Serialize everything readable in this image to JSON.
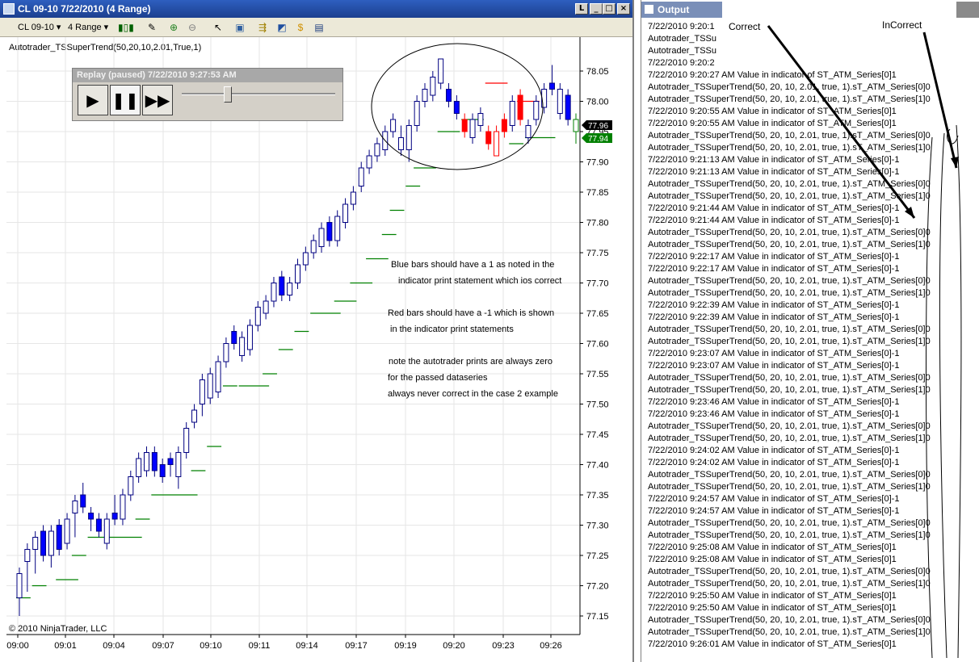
{
  "chart_window": {
    "title": "CL 09-10  7/22/2010 (4 Range)",
    "instrument_selector": "CL 09-10",
    "period_selector": "4 Range",
    "indicator_label": "Autotrader_TSSuperTrend(50,20,10,2.01,True,1)",
    "copyright": "© 2010 NinjaTrader, LLC"
  },
  "replay": {
    "title": "Replay (paused) 7/22/2010 9:27:53 AM",
    "slider_position": 0.3
  },
  "price_markers": {
    "last_price": "77.96",
    "stop_price": "77.94"
  },
  "annotation": {
    "line1": "Blue bars should have a 1 as noted in the",
    "line2": "indicator print statement which ios correct",
    "line3": "Red bars should have a  -1 which is shown",
    "line4": "in the indicator print statements",
    "line5": "note the autotrader prints are always zero",
    "line6": "for the passed dataseries",
    "line7": "always never correct in the case 2 example"
  },
  "chart_data": {
    "type": "candlestick",
    "x_ticks": [
      "09:00",
      "09:01",
      "09:04",
      "09:07",
      "09:10",
      "09:11",
      "09:14",
      "09:17",
      "09:19",
      "09:20",
      "09:23",
      "09:26"
    ],
    "y_ticks": [
      "78.05",
      "78.00",
      "77.95",
      "77.90",
      "77.85",
      "77.80",
      "77.75",
      "77.70",
      "77.65",
      "77.60",
      "77.55",
      "77.50",
      "77.45",
      "77.40",
      "77.35",
      "77.30",
      "77.25",
      "77.20",
      "77.15"
    ],
    "ylim": [
      77.14,
      78.09
    ],
    "grid": true,
    "colors": {
      "up": "#ffffff",
      "down_blue": "#0000ff",
      "down_red": "#ff0000",
      "stop": "#008000",
      "outline": "#000080",
      "red_outline": "#ff0000"
    },
    "bars": [
      {
        "o": 77.18,
        "c": 77.22,
        "h": 77.23,
        "l": 77.15,
        "col": "up"
      },
      {
        "o": 77.24,
        "c": 77.26,
        "h": 77.27,
        "l": 77.19,
        "col": "up"
      },
      {
        "o": 77.26,
        "c": 77.28,
        "h": 77.29,
        "l": 77.22,
        "col": "up"
      },
      {
        "o": 77.29,
        "c": 77.25,
        "h": 77.3,
        "l": 77.24,
        "col": "blue"
      },
      {
        "o": 77.25,
        "c": 77.29,
        "h": 77.3,
        "l": 77.23,
        "col": "up"
      },
      {
        "o": 77.3,
        "c": 77.26,
        "h": 77.31,
        "l": 77.25,
        "col": "blue"
      },
      {
        "o": 77.27,
        "c": 77.31,
        "h": 77.32,
        "l": 77.26,
        "col": "up"
      },
      {
        "o": 77.32,
        "c": 77.34,
        "h": 77.35,
        "l": 77.28,
        "col": "up"
      },
      {
        "o": 77.35,
        "c": 77.33,
        "h": 77.37,
        "l": 77.32,
        "col": "blue"
      },
      {
        "o": 77.32,
        "c": 77.31,
        "h": 77.33,
        "l": 77.29,
        "col": "blue"
      },
      {
        "o": 77.31,
        "c": 77.29,
        "h": 77.32,
        "l": 77.28,
        "col": "blue"
      },
      {
        "o": 77.27,
        "c": 77.31,
        "h": 77.32,
        "l": 77.26,
        "col": "up"
      },
      {
        "o": 77.31,
        "c": 77.32,
        "h": 77.35,
        "l": 77.3,
        "col": "blue"
      },
      {
        "o": 77.31,
        "c": 77.35,
        "h": 77.36,
        "l": 77.3,
        "col": "up"
      },
      {
        "o": 77.35,
        "c": 77.38,
        "h": 77.39,
        "l": 77.34,
        "col": "up"
      },
      {
        "o": 77.38,
        "c": 77.41,
        "h": 77.42,
        "l": 77.37,
        "col": "up"
      },
      {
        "o": 77.39,
        "c": 77.42,
        "h": 77.43,
        "l": 77.38,
        "col": "up"
      },
      {
        "o": 77.42,
        "c": 77.39,
        "h": 77.43,
        "l": 77.38,
        "col": "blue"
      },
      {
        "o": 77.38,
        "c": 77.4,
        "h": 77.41,
        "l": 77.37,
        "col": "blue"
      },
      {
        "o": 77.4,
        "c": 77.41,
        "h": 77.42,
        "l": 77.38,
        "col": "blue"
      },
      {
        "o": 77.38,
        "c": 77.42,
        "h": 77.43,
        "l": 77.36,
        "col": "up"
      },
      {
        "o": 77.42,
        "c": 77.46,
        "h": 77.47,
        "l": 77.41,
        "col": "up"
      },
      {
        "o": 77.47,
        "c": 77.49,
        "h": 77.5,
        "l": 77.46,
        "col": "up"
      },
      {
        "o": 77.5,
        "c": 77.54,
        "h": 77.55,
        "l": 77.48,
        "col": "up"
      },
      {
        "o": 77.51,
        "c": 77.55,
        "h": 77.56,
        "l": 77.5,
        "col": "up"
      },
      {
        "o": 77.52,
        "c": 77.57,
        "h": 77.58,
        "l": 77.51,
        "col": "up"
      },
      {
        "o": 77.57,
        "c": 77.6,
        "h": 77.61,
        "l": 77.56,
        "col": "up"
      },
      {
        "o": 77.6,
        "c": 77.62,
        "h": 77.63,
        "l": 77.59,
        "col": "blue"
      },
      {
        "o": 77.58,
        "c": 77.61,
        "h": 77.62,
        "l": 77.57,
        "col": "up"
      },
      {
        "o": 77.59,
        "c": 77.63,
        "h": 77.64,
        "l": 77.58,
        "col": "up"
      },
      {
        "o": 77.63,
        "c": 77.66,
        "h": 77.67,
        "l": 77.62,
        "col": "up"
      },
      {
        "o": 77.65,
        "c": 77.67,
        "h": 77.68,
        "l": 77.64,
        "col": "up"
      },
      {
        "o": 77.67,
        "c": 77.7,
        "h": 77.71,
        "l": 77.66,
        "col": "up"
      },
      {
        "o": 77.71,
        "c": 77.68,
        "h": 77.72,
        "l": 77.67,
        "col": "blue"
      },
      {
        "o": 77.68,
        "c": 77.7,
        "h": 77.71,
        "l": 77.67,
        "col": "up"
      },
      {
        "o": 77.7,
        "c": 77.73,
        "h": 77.74,
        "l": 77.69,
        "col": "up"
      },
      {
        "o": 77.73,
        "c": 77.75,
        "h": 77.76,
        "l": 77.72,
        "col": "up"
      },
      {
        "o": 77.75,
        "c": 77.77,
        "h": 77.78,
        "l": 77.74,
        "col": "up"
      },
      {
        "o": 77.76,
        "c": 77.79,
        "h": 77.8,
        "l": 77.75,
        "col": "up"
      },
      {
        "o": 77.8,
        "c": 77.77,
        "h": 77.81,
        "l": 77.76,
        "col": "blue"
      },
      {
        "o": 77.77,
        "c": 77.81,
        "h": 77.82,
        "l": 77.76,
        "col": "up"
      },
      {
        "o": 77.8,
        "c": 77.83,
        "h": 77.84,
        "l": 77.79,
        "col": "up"
      },
      {
        "o": 77.83,
        "c": 77.85,
        "h": 77.86,
        "l": 77.82,
        "col": "up"
      },
      {
        "o": 77.86,
        "c": 77.89,
        "h": 77.9,
        "l": 77.85,
        "col": "up"
      },
      {
        "o": 77.89,
        "c": 77.91,
        "h": 77.92,
        "l": 77.88,
        "col": "up"
      },
      {
        "o": 77.91,
        "c": 77.93,
        "h": 77.94,
        "l": 77.9,
        "col": "up"
      },
      {
        "o": 77.92,
        "c": 77.95,
        "h": 77.96,
        "l": 77.91,
        "col": "up"
      },
      {
        "o": 77.95,
        "c": 77.97,
        "h": 77.98,
        "l": 77.94,
        "col": "up"
      },
      {
        "o": 77.94,
        "c": 77.92,
        "h": 77.96,
        "l": 77.91,
        "col": "up"
      },
      {
        "o": 77.92,
        "c": 77.96,
        "h": 77.97,
        "l": 77.9,
        "col": "up"
      },
      {
        "o": 77.96,
        "c": 78.0,
        "h": 78.01,
        "l": 77.95,
        "col": "up"
      },
      {
        "o": 78.0,
        "c": 78.02,
        "h": 78.03,
        "l": 77.99,
        "col": "up"
      },
      {
        "o": 78.01,
        "c": 78.04,
        "h": 78.05,
        "l": 78.0,
        "col": "up"
      },
      {
        "o": 78.03,
        "c": 78.07,
        "h": 78.07,
        "l": 78.02,
        "col": "up"
      },
      {
        "o": 78.02,
        "c": 78.0,
        "h": 78.03,
        "l": 77.99,
        "col": "blue"
      },
      {
        "o": 78.0,
        "c": 77.98,
        "h": 78.01,
        "l": 77.97,
        "col": "blue"
      },
      {
        "o": 77.97,
        "c": 77.95,
        "h": 77.98,
        "l": 77.94,
        "col": "red"
      },
      {
        "o": 77.94,
        "c": 77.97,
        "h": 77.98,
        "l": 77.93,
        "col": "up"
      },
      {
        "o": 77.96,
        "c": 77.98,
        "h": 77.99,
        "l": 77.95,
        "col": "up"
      },
      {
        "o": 77.95,
        "c": 77.93,
        "h": 77.96,
        "l": 77.92,
        "col": "red"
      },
      {
        "o": 77.91,
        "c": 77.95,
        "h": 77.96,
        "l": 77.91,
        "col": "red_up"
      },
      {
        "o": 77.97,
        "c": 77.95,
        "h": 77.98,
        "l": 77.94,
        "col": "red"
      },
      {
        "o": 77.96,
        "c": 78.0,
        "h": 78.01,
        "l": 77.95,
        "col": "up"
      },
      {
        "o": 78.01,
        "c": 77.97,
        "h": 78.02,
        "l": 77.96,
        "col": "red"
      },
      {
        "o": 77.94,
        "c": 77.96,
        "h": 77.97,
        "l": 77.93,
        "col": "up"
      },
      {
        "o": 77.97,
        "c": 78.0,
        "h": 78.01,
        "l": 77.96,
        "col": "up"
      },
      {
        "o": 77.99,
        "c": 78.02,
        "h": 78.03,
        "l": 77.98,
        "col": "up"
      },
      {
        "o": 78.03,
        "c": 78.02,
        "h": 78.06,
        "l": 78.01,
        "col": "blue"
      },
      {
        "o": 78.02,
        "c": 77.98,
        "h": 78.03,
        "l": 77.97,
        "col": "up"
      },
      {
        "o": 78.01,
        "c": 77.97,
        "h": 78.02,
        "l": 77.96,
        "col": "blue"
      },
      {
        "o": 77.95,
        "c": 77.97,
        "h": 77.98,
        "l": 77.93,
        "col": "up_green"
      }
    ],
    "stop_segments": [
      {
        "from": 0,
        "to": 1,
        "y": 77.18
      },
      {
        "from": 2,
        "to": 3,
        "y": 77.2
      },
      {
        "from": 5,
        "to": 7,
        "y": 77.21
      },
      {
        "from": 7,
        "to": 8,
        "y": 77.25
      },
      {
        "from": 9,
        "to": 15,
        "y": 77.28
      },
      {
        "from": 15,
        "to": 16,
        "y": 77.31
      },
      {
        "from": 17,
        "to": 22,
        "y": 77.35
      },
      {
        "from": 22,
        "to": 23,
        "y": 77.39
      },
      {
        "from": 24,
        "to": 25,
        "y": 77.43
      },
      {
        "from": 26,
        "to": 27,
        "y": 77.53
      },
      {
        "from": 28,
        "to": 31,
        "y": 77.53
      },
      {
        "from": 31,
        "to": 32,
        "y": 77.55
      },
      {
        "from": 33,
        "to": 34,
        "y": 77.59
      },
      {
        "from": 35,
        "to": 36,
        "y": 77.62
      },
      {
        "from": 37,
        "to": 40,
        "y": 77.65
      },
      {
        "from": 40,
        "to": 42,
        "y": 77.67
      },
      {
        "from": 42,
        "to": 44,
        "y": 77.7
      },
      {
        "from": 44,
        "to": 46,
        "y": 77.74
      },
      {
        "from": 46,
        "to": 47,
        "y": 77.78
      },
      {
        "from": 47,
        "to": 48,
        "y": 77.82
      },
      {
        "from": 49,
        "to": 50,
        "y": 77.86
      },
      {
        "from": 50,
        "to": 52,
        "y": 77.89
      },
      {
        "from": 53,
        "to": 55,
        "y": 77.95
      },
      {
        "from": 56,
        "to": 58,
        "y": 77.97
      },
      {
        "from": 62,
        "to": 63,
        "y": 77.93
      },
      {
        "from": 64,
        "to": 67,
        "y": 77.94
      }
    ],
    "red_stop_segments": [
      {
        "from": 59,
        "to": 61,
        "y": 78.03
      },
      {
        "from": 63,
        "to": 65,
        "y": 78.0
      }
    ]
  },
  "output_window": {
    "title": "Output",
    "annotation_correct": "Correct",
    "annotation_incorrect": "InCorrect",
    "lines": [
      "7/22/2010 9:20:1",
      "Autotrader_TSSu",
      "Autotrader_TSSu",
      "7/22/2010 9:20:2",
      "7/22/2010 9:20:27 AM   Value in indicator of ST_ATM_Series[0]1",
      "Autotrader_TSSuperTrend(50, 20, 10, 2.01, true, 1).sT_ATM_Series[0]0",
      "Autotrader_TSSuperTrend(50, 20, 10, 2.01, true, 1).sT_ATM_Series[1]0",
      "7/22/2010 9:20:55 AM   Value in indicator of ST_ATM_Series[0]1",
      "7/22/2010 9:20:55 AM   Value in indicator of ST_ATM_Series[0]1",
      "Autotrader_TSSuperTrend(50, 20, 10, 2.01, true, 1).sT_ATM_Series[0]0",
      "Autotrader_TSSuperTrend(50, 20, 10, 2.01, true, 1).sT_ATM_Series[1]0",
      "7/22/2010 9:21:13 AM   Value in indicator of ST_ATM_Series[0]-1",
      "7/22/2010 9:21:13 AM   Value in indicator of ST_ATM_Series[0]-1",
      "Autotrader_TSSuperTrend(50, 20, 10, 2.01, true, 1).sT_ATM_Series[0]0",
      "Autotrader_TSSuperTrend(50, 20, 10, 2.01, true, 1).sT_ATM_Series[1]0",
      "7/22/2010 9:21:44 AM   Value in indicator of ST_ATM_Series[0]-1",
      "7/22/2010 9:21:44 AM   Value in indicator of ST_ATM_Series[0]-1",
      "Autotrader_TSSuperTrend(50, 20, 10, 2.01, true, 1).sT_ATM_Series[0]0",
      "Autotrader_TSSuperTrend(50, 20, 10, 2.01, true, 1).sT_ATM_Series[1]0",
      "7/22/2010 9:22:17 AM   Value in indicator of ST_ATM_Series[0]-1",
      "7/22/2010 9:22:17 AM   Value in indicator of ST_ATM_Series[0]-1",
      "Autotrader_TSSuperTrend(50, 20, 10, 2.01, true, 1).sT_ATM_Series[0]0",
      "Autotrader_TSSuperTrend(50, 20, 10, 2.01, true, 1).sT_ATM_Series[1]0",
      "7/22/2010 9:22:39 AM   Value in indicator of ST_ATM_Series[0]-1",
      "7/22/2010 9:22:39 AM   Value in indicator of ST_ATM_Series[0]-1",
      "Autotrader_TSSuperTrend(50, 20, 10, 2.01, true, 1).sT_ATM_Series[0]0",
      "Autotrader_TSSuperTrend(50, 20, 10, 2.01, true, 1).sT_ATM_Series[1]0",
      "7/22/2010 9:23:07 AM   Value in indicator of ST_ATM_Series[0]-1",
      "7/22/2010 9:23:07 AM   Value in indicator of ST_ATM_Series[0]-1",
      "Autotrader_TSSuperTrend(50, 20, 10, 2.01, true, 1).sT_ATM_Series[0]0",
      "Autotrader_TSSuperTrend(50, 20, 10, 2.01, true, 1).sT_ATM_Series[1]0",
      "7/22/2010 9:23:46 AM   Value in indicator of ST_ATM_Series[0]-1",
      "7/22/2010 9:23:46 AM   Value in indicator of ST_ATM_Series[0]-1",
      "Autotrader_TSSuperTrend(50, 20, 10, 2.01, true, 1).sT_ATM_Series[0]0",
      "Autotrader_TSSuperTrend(50, 20, 10, 2.01, true, 1).sT_ATM_Series[1]0",
      "7/22/2010 9:24:02 AM   Value in indicator of ST_ATM_Series[0]-1",
      "7/22/2010 9:24:02 AM   Value in indicator of ST_ATM_Series[0]-1",
      "Autotrader_TSSuperTrend(50, 20, 10, 2.01, true, 1).sT_ATM_Series[0]0",
      "Autotrader_TSSuperTrend(50, 20, 10, 2.01, true, 1).sT_ATM_Series[1]0",
      "7/22/2010 9:24:57 AM   Value in indicator of ST_ATM_Series[0]-1",
      "7/22/2010 9:24:57 AM   Value in indicator of ST_ATM_Series[0]-1",
      "Autotrader_TSSuperTrend(50, 20, 10, 2.01, true, 1).sT_ATM_Series[0]0",
      "Autotrader_TSSuperTrend(50, 20, 10, 2.01, true, 1).sT_ATM_Series[1]0",
      "7/22/2010 9:25:08 AM   Value in indicator of ST_ATM_Series[0]1",
      "7/22/2010 9:25:08 AM   Value in indicator of ST_ATM_Series[0]1",
      "Autotrader_TSSuperTrend(50, 20, 10, 2.01, true, 1).sT_ATM_Series[0]0",
      "Autotrader_TSSuperTrend(50, 20, 10, 2.01, true, 1).sT_ATM_Series[1]0",
      "7/22/2010 9:25:50 AM   Value in indicator of ST_ATM_Series[0]1",
      "7/22/2010 9:25:50 AM   Value in indicator of ST_ATM_Series[0]1",
      "Autotrader_TSSuperTrend(50, 20, 10, 2.01, true, 1).sT_ATM_Series[0]0",
      "Autotrader_TSSuperTrend(50, 20, 10, 2.01, true, 1).sT_ATM_Series[1]0",
      "7/22/2010 9:26:01 AM   Value in indicator of ST_ATM_Series[0]1"
    ]
  }
}
